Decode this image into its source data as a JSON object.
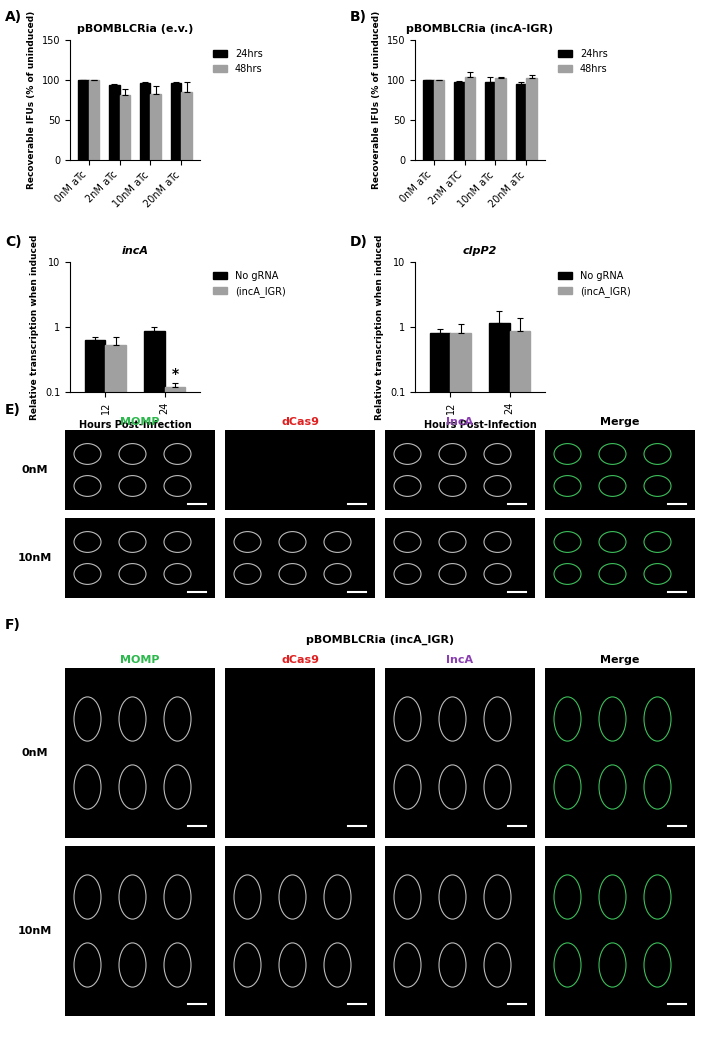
{
  "chart_data": [
    {
      "type": "bar",
      "panel_label": "A)",
      "title": "pBOMBLCRia (e.v.)",
      "categories": [
        "0nM aTc",
        "2nM aTc",
        "10nM aTc",
        "20nM aTc"
      ],
      "y_label": "Recoverable IFUs (% of uninduced)",
      "series": [
        {
          "name": "24hrs",
          "color": "#000000",
          "values": [
            100,
            94,
            96,
            96
          ],
          "errors": [
            0,
            1.5,
            1,
            1
          ]
        },
        {
          "name": "48hrs",
          "color": "#a0a0a0",
          "values": [
            100,
            81,
            83,
            85
          ],
          "errors": [
            0,
            8,
            10,
            12
          ]
        }
      ],
      "ylim": [
        0,
        150
      ],
      "yticks": [
        0,
        50,
        100,
        150
      ],
      "legend": "upper left"
    },
    {
      "type": "bar",
      "panel_label": "B)",
      "title": "pBOMBLCRia (incA-IGR)",
      "categories": [
        "0nM aTc",
        "2nM aTC",
        "10nM aTc",
        "20nM aTc"
      ],
      "y_label": "Recoverable IFUs (% of uninduced)",
      "series": [
        {
          "name": "24hrs",
          "color": "#000000",
          "values": [
            100,
            97,
            98,
            95
          ],
          "errors": [
            0,
            2,
            6,
            3
          ]
        },
        {
          "name": "48hrs",
          "color": "#a0a0a0",
          "values": [
            100,
            104,
            102,
            102
          ],
          "errors": [
            0,
            6,
            2,
            4
          ]
        }
      ],
      "ylim": [
        0,
        150
      ],
      "yticks": [
        0,
        50,
        100,
        150
      ],
      "legend": "upper left"
    },
    {
      "type": "bar",
      "panel_label": "C)",
      "title": "incA",
      "categories": [
        "12",
        "24"
      ],
      "x_label": "Hours Post-Infection",
      "y_label": "Relative transcription when induced",
      "series": [
        {
          "name": "No gRNA",
          "color": "#000000",
          "values": [
            0.63,
            0.87
          ],
          "errors": [
            0.06,
            0.14
          ]
        },
        {
          "name": "(incA_IGR)",
          "color": "#a0a0a0",
          "values": [
            0.52,
            0.12
          ],
          "errors": [
            0.17,
            0.02
          ]
        }
      ],
      "log": "y",
      "ylim": [
        0.1,
        10
      ],
      "yticks": [
        0.1,
        1,
        10
      ],
      "legend": "upper left",
      "annotations": [
        {
          "text": "*",
          "category": "24",
          "series": "(incA_IGR)"
        }
      ]
    },
    {
      "type": "bar",
      "panel_label": "D)",
      "title": "clpP2",
      "categories": [
        "12",
        "24"
      ],
      "x_label": "Hours Post-Infection",
      "y_label": "Relative transcription when induced",
      "series": [
        {
          "name": "No gRNA",
          "color": "#000000",
          "values": [
            0.8,
            1.15
          ],
          "errors": [
            0.12,
            0.6
          ]
        },
        {
          "name": "(incA_IGR)",
          "color": "#a0a0a0",
          "values": [
            0.82,
            0.88
          ],
          "errors": [
            0.3,
            0.5
          ]
        }
      ],
      "log": "y",
      "ylim": [
        0.1,
        10
      ],
      "yticks": [
        0.1,
        1,
        10
      ],
      "legend": "upper left"
    }
  ],
  "image_panels": [
    {
      "panel_label": "E)",
      "columns": [
        {
          "label": "MOMP",
          "color": "#2db84d"
        },
        {
          "label": "dCas9",
          "color": "#e02020"
        },
        {
          "label": "IncA",
          "color": "#8a3fb0"
        },
        {
          "label": "Merge",
          "color": "#000000"
        }
      ],
      "rows": [
        "0nM",
        "10nM"
      ]
    },
    {
      "panel_label": "F)",
      "title": "pBOMBLCRia (incA_IGR)",
      "columns": [
        {
          "label": "MOMP",
          "color": "#2db84d"
        },
        {
          "label": "dCas9",
          "color": "#e02020"
        },
        {
          "label": "IncA",
          "color": "#8a3fb0"
        },
        {
          "label": "Merge",
          "color": "#000000"
        }
      ],
      "rows": [
        "0nM",
        "10nM"
      ]
    }
  ]
}
